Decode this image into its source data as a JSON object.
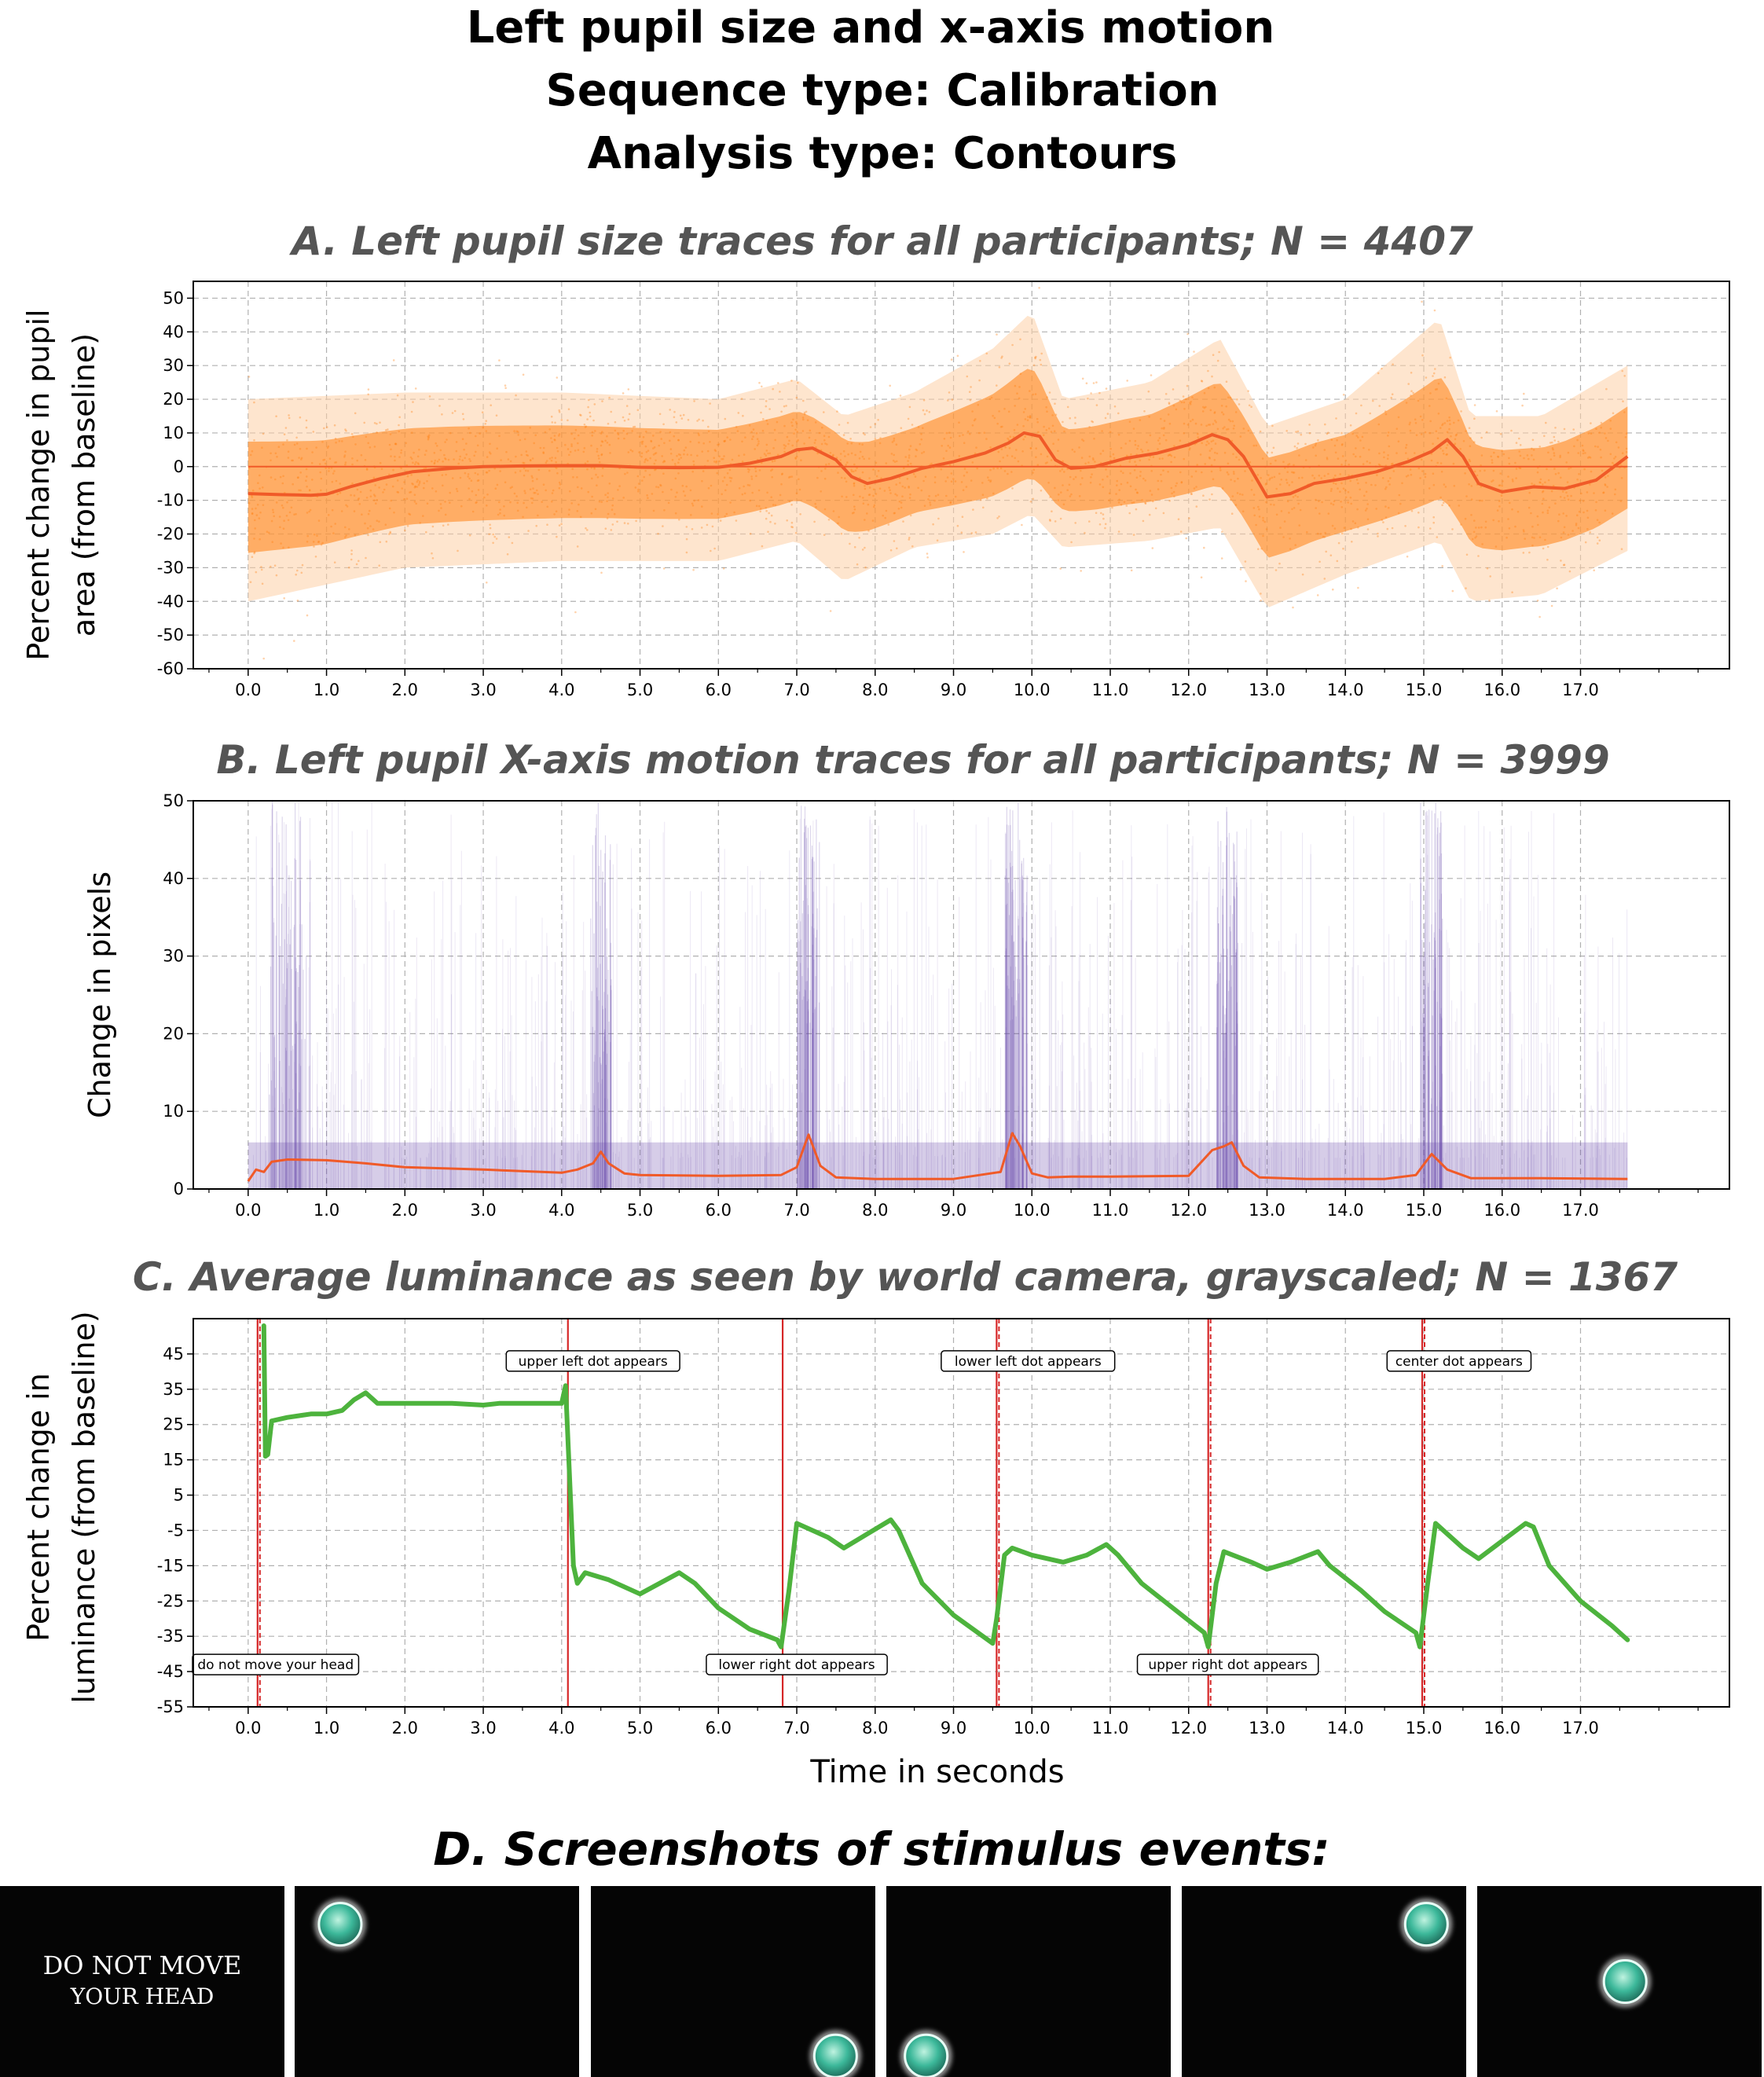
{
  "figure": {
    "title_lines": [
      "Left pupil size and x-axis motion",
      "Sequence type: Calibration",
      "Analysis type: Contours"
    ]
  },
  "chart_data": [
    {
      "id": "A",
      "type": "scatter",
      "title": "A. Left pupil size traces for all participants; N = 4407",
      "ylabel_lines": [
        "Percent change in pupil",
        "area (from baseline)"
      ],
      "xlim": [
        -0.7,
        18.9
      ],
      "ylim": [
        -60,
        55
      ],
      "xticks": [
        0.0,
        1.0,
        2.0,
        3.0,
        4.0,
        5.0,
        6.0,
        7.0,
        8.0,
        9.0,
        10.0,
        11.0,
        12.0,
        13.0,
        14.0,
        15.0,
        16.0,
        17.0
      ],
      "yticks": [
        -60,
        -50,
        -40,
        -30,
        -20,
        -10,
        0,
        10,
        20,
        30,
        40,
        50
      ],
      "grid": true,
      "scatter_color": "#ff7f0e",
      "mean_color": "#f05a28",
      "mean_trace": {
        "x": [
          0.0,
          0.4,
          0.8,
          1.0,
          1.3,
          1.7,
          2.1,
          2.6,
          3.0,
          3.5,
          4.0,
          4.5,
          5.0,
          5.5,
          6.0,
          6.4,
          6.8,
          7.0,
          7.2,
          7.5,
          7.7,
          7.9,
          8.2,
          8.6,
          9.0,
          9.4,
          9.7,
          9.9,
          10.1,
          10.3,
          10.5,
          10.8,
          11.2,
          11.6,
          12.0,
          12.3,
          12.5,
          12.7,
          13.0,
          13.3,
          13.6,
          14.0,
          14.4,
          14.8,
          15.1,
          15.3,
          15.5,
          15.7,
          16.0,
          16.4,
          16.8,
          17.2,
          17.6
        ],
        "y": [
          -8,
          -8.3,
          -8.5,
          -8.2,
          -6,
          -3.5,
          -1.5,
          -0.5,
          0,
          0.2,
          0.3,
          0.3,
          -0.2,
          -0.3,
          -0.2,
          1,
          3,
          5,
          5.5,
          2,
          -3,
          -5,
          -3.5,
          -0.5,
          1.5,
          4,
          7,
          10,
          9,
          2,
          -0.5,
          0,
          2.5,
          4,
          6.5,
          9.5,
          8,
          3,
          -9,
          -8,
          -5,
          -3.5,
          -1.5,
          1.5,
          4.5,
          8,
          3,
          -5,
          -7.5,
          -6,
          -6.5,
          -4,
          3
        ]
      },
      "spread_upper": {
        "x": [
          0.0,
          2.0,
          4.0,
          6.0,
          7.0,
          7.6,
          8.5,
          9.5,
          10.0,
          10.4,
          11.5,
          12.4,
          13.0,
          14.0,
          15.2,
          15.6,
          16.5,
          17.6
        ],
        "y": [
          20,
          22,
          22,
          20,
          26,
          15,
          22,
          35,
          46,
          20,
          25,
          38,
          12,
          20,
          44,
          15,
          15,
          30
        ]
      },
      "spread_lower": {
        "x": [
          0.0,
          2.0,
          4.0,
          6.0,
          7.0,
          7.6,
          8.5,
          9.5,
          10.0,
          10.4,
          11.5,
          12.4,
          13.0,
          14.0,
          15.2,
          15.6,
          16.5,
          17.6
        ],
        "y": [
          -40,
          -30,
          -28,
          -28,
          -22,
          -34,
          -24,
          -20,
          -14,
          -24,
          -22,
          -18,
          -42,
          -32,
          -22,
          -40,
          -38,
          -25
        ]
      }
    },
    {
      "id": "B",
      "type": "line",
      "title": "B. Left pupil X-axis motion traces for all participants; N = 3999",
      "ylabel_lines": [
        "Change in pixels"
      ],
      "xlim": [
        -0.7,
        18.9
      ],
      "ylim": [
        0,
        50
      ],
      "xticks": [
        0.0,
        1.0,
        2.0,
        3.0,
        4.0,
        5.0,
        6.0,
        7.0,
        8.0,
        9.0,
        10.0,
        11.0,
        12.0,
        13.0,
        14.0,
        15.0,
        16.0,
        17.0
      ],
      "yticks": [
        0,
        10,
        20,
        30,
        40,
        50
      ],
      "grid": true,
      "trace_color": "#6a4cad",
      "mean_color": "#f05a28",
      "mean_trace": {
        "x": [
          0.0,
          0.1,
          0.2,
          0.3,
          0.5,
          1.0,
          1.5,
          2.0,
          3.0,
          4.0,
          4.2,
          4.4,
          4.5,
          4.6,
          4.8,
          5.0,
          6.0,
          6.8,
          7.0,
          7.15,
          7.3,
          7.5,
          8.0,
          9.0,
          9.6,
          9.75,
          9.85,
          10.0,
          10.2,
          10.5,
          11.0,
          12.0,
          12.3,
          12.45,
          12.55,
          12.7,
          12.9,
          13.5,
          14.5,
          14.9,
          15.1,
          15.3,
          15.6,
          16.5,
          17.6
        ],
        "y": [
          1,
          2.5,
          2.2,
          3.5,
          3.8,
          3.7,
          3.3,
          2.8,
          2.5,
          2.1,
          2.5,
          3.3,
          4.8,
          3.3,
          2.0,
          1.8,
          1.7,
          1.8,
          2.8,
          7.0,
          3.0,
          1.5,
          1.3,
          1.3,
          2.2,
          7.2,
          5.5,
          2.0,
          1.5,
          1.6,
          1.6,
          1.7,
          5.0,
          5.5,
          6.0,
          3.0,
          1.5,
          1.3,
          1.3,
          1.8,
          4.5,
          2.5,
          1.4,
          1.4,
          1.3
        ]
      },
      "peaks_x": [
        0.5,
        4.5,
        7.15,
        9.8,
        12.5,
        15.1
      ]
    },
    {
      "id": "C",
      "type": "line",
      "title": "C. Average luminance as seen by world camera, grayscaled; N = 1367",
      "ylabel_lines": [
        "Percent change in",
        "luminance (from baseline)"
      ],
      "xlabel": "Time in seconds",
      "xlim": [
        -0.7,
        18.9
      ],
      "ylim": [
        -55,
        55
      ],
      "xticks": [
        0.0,
        1.0,
        2.0,
        3.0,
        4.0,
        5.0,
        6.0,
        7.0,
        8.0,
        9.0,
        10.0,
        11.0,
        12.0,
        13.0,
        14.0,
        15.0,
        16.0,
        17.0
      ],
      "yticks": [
        -55,
        -45,
        -35,
        -25,
        -15,
        -5,
        5,
        15,
        25,
        35,
        45
      ],
      "grid": true,
      "line_color": "#4db33d",
      "event_color": "#d62728",
      "event_lines_x": [
        0.12,
        4.08,
        6.82,
        9.55,
        12.25,
        14.98
      ],
      "luminance": {
        "x": [
          0.2,
          0.22,
          0.25,
          0.3,
          0.5,
          0.8,
          1.0,
          1.2,
          1.35,
          1.5,
          1.65,
          1.8,
          2.2,
          2.6,
          3.0,
          3.2,
          3.6,
          4.0,
          4.05,
          4.15,
          4.2,
          4.3,
          4.6,
          5.0,
          5.5,
          5.7,
          6.0,
          6.4,
          6.75,
          6.8,
          6.9,
          7.0,
          7.4,
          7.6,
          7.9,
          8.2,
          8.3,
          8.6,
          9.0,
          9.5,
          9.55,
          9.65,
          9.75,
          10.0,
          10.4,
          10.7,
          10.95,
          11.1,
          11.4,
          11.8,
          12.2,
          12.25,
          12.35,
          12.45,
          12.8,
          13.0,
          13.3,
          13.65,
          13.8,
          14.2,
          14.5,
          14.9,
          14.95,
          15.05,
          15.15,
          15.5,
          15.7,
          16.0,
          16.3,
          16.4,
          16.6,
          17.0,
          17.4,
          17.6
        ],
        "y": [
          53,
          16,
          16.5,
          26,
          27,
          28,
          28,
          29,
          32,
          34,
          31,
          31,
          31,
          31,
          30.5,
          31,
          31,
          31,
          36,
          -15,
          -20,
          -17,
          -19,
          -23,
          -17,
          -20,
          -27,
          -33,
          -36,
          -38,
          -22,
          -3,
          -7,
          -10,
          -6,
          -2,
          -5,
          -20,
          -29,
          -37,
          -30,
          -12,
          -10,
          -12,
          -14,
          -12,
          -9,
          -12,
          -20,
          -27,
          -34,
          -38,
          -20,
          -11,
          -14,
          -16,
          -14,
          -11,
          -15,
          -22,
          -28,
          -34,
          -38,
          -20,
          -3,
          -10,
          -13,
          -8,
          -3,
          -4,
          -15,
          -25,
          -32,
          -36
        ]
      },
      "annotations_top": [
        {
          "text": "upper left dot appears",
          "x": 4.4,
          "y": 43
        },
        {
          "text": "lower left dot appears",
          "x": 9.95,
          "y": 43
        },
        {
          "text": "center dot appears",
          "x": 15.45,
          "y": 43
        }
      ],
      "annotations_bottom": [
        {
          "text": "do not move your head",
          "x": 0.35,
          "y": -43
        },
        {
          "text": "lower right dot appears",
          "x": 7.0,
          "y": -43
        },
        {
          "text": "upper right dot appears",
          "x": 12.5,
          "y": -43
        }
      ]
    }
  ],
  "panel_d": {
    "title": "D. Screenshots of stimulus events:",
    "dot_color": "#3cb89a",
    "screens": [
      {
        "type": "text",
        "lines": [
          "DO NOT MOVE",
          "YOUR HEAD"
        ]
      },
      {
        "type": "dot",
        "position": "upper-left"
      },
      {
        "type": "dot",
        "position": "lower-right"
      },
      {
        "type": "dot",
        "position": "lower-left"
      },
      {
        "type": "dot",
        "position": "upper-right"
      },
      {
        "type": "dot",
        "position": "center"
      }
    ]
  }
}
